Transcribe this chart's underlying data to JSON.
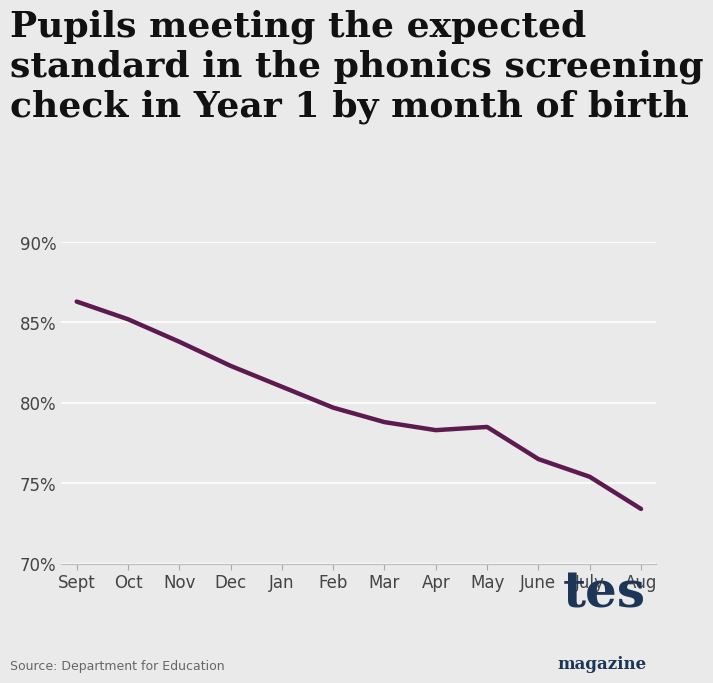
{
  "title": "Pupils meeting the expected\nstandard in the phonics screening\ncheck in Year 1 by month of birth",
  "months": [
    "Sept",
    "Oct",
    "Nov",
    "Dec",
    "Jan",
    "Feb",
    "Mar",
    "Apr",
    "May",
    "June",
    "July",
    "Aug"
  ],
  "values": [
    86.3,
    85.2,
    83.8,
    82.3,
    81.0,
    79.7,
    78.8,
    78.3,
    78.5,
    76.5,
    75.4,
    73.4
  ],
  "line_color": "#5C1A50",
  "line_width": 3.2,
  "ylim": [
    70,
    90
  ],
  "yticks": [
    70,
    75,
    80,
    85,
    90
  ],
  "background_color": "#EAEAEA",
  "plot_bg_color": "#EAEAEA",
  "title_fontsize": 26,
  "title_color": "#111111",
  "tick_fontsize": 12,
  "source_text": "Source: Department for Education",
  "source_fontsize": 9,
  "tes_color": "#1D3557",
  "magazine_color": "#1D3557"
}
